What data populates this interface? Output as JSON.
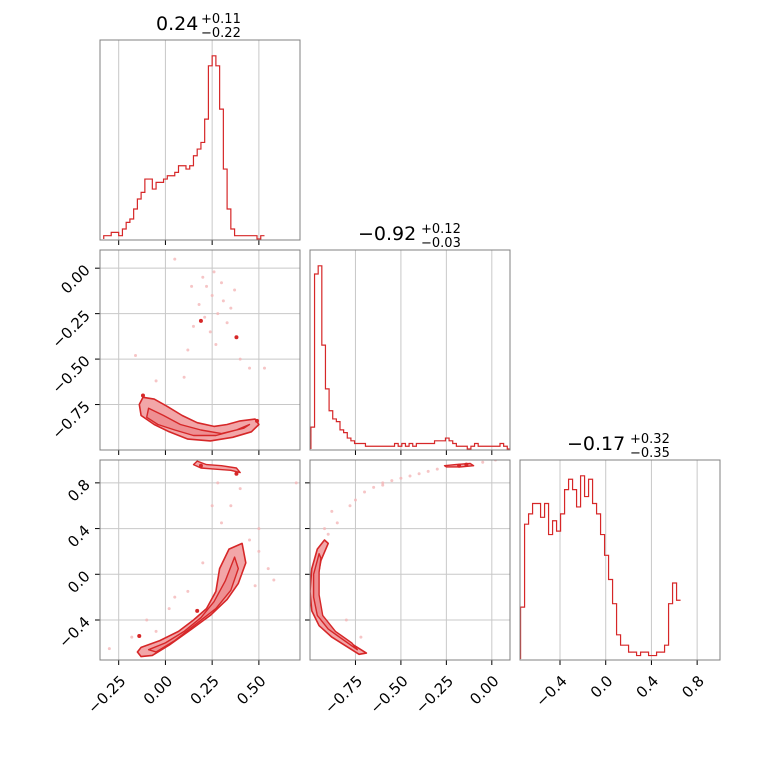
{
  "chart_data": {
    "type": "corner",
    "color": "#d62728",
    "fill_color": "#f2a6a8",
    "grid": true,
    "parameters": [
      {
        "range": [
          -0.35,
          0.72
        ],
        "ticks": [
          -0.25,
          0.0,
          0.25,
          0.5
        ],
        "tick_labels": [
          "−0.25",
          "0.00",
          "0.25",
          "0.50"
        ]
      },
      {
        "range": [
          -1.0,
          0.1
        ],
        "ticks": [
          -0.75,
          -0.5,
          -0.25,
          0.0
        ],
        "tick_labels": [
          "−0.75",
          "−0.50",
          "−0.25",
          "0.00"
        ]
      },
      {
        "range": [
          -0.75,
          1.0
        ],
        "ticks": [
          -0.4,
          0.0,
          0.4,
          0.8
        ],
        "tick_labels": [
          "−0.4",
          "0.0",
          "0.4",
          "0.8"
        ]
      }
    ],
    "titles": [
      {
        "main": "0.24",
        "plus": "+0.11",
        "minus": "−0.22"
      },
      {
        "main": "−0.92",
        "plus": "+0.12",
        "minus": "−0.03"
      },
      {
        "main": "−0.17",
        "plus": "+0.32",
        "minus": "−0.35"
      }
    ],
    "histograms": [
      {
        "parameter": 0,
        "edges_start": -0.33,
        "bin_width": 0.02,
        "counts": [
          1,
          1,
          2,
          2,
          1,
          3,
          5,
          6,
          9,
          12,
          14,
          18,
          18,
          15,
          17,
          17,
          18,
          19,
          19,
          20,
          22,
          22,
          21,
          22,
          25,
          27,
          29,
          36,
          52,
          55,
          52,
          39,
          21,
          9,
          3,
          1,
          1,
          1,
          1,
          1,
          1,
          0,
          1
        ]
      },
      {
        "parameter": 1,
        "edges_start": -0.995,
        "bin_width": 0.02,
        "counts": [
          8,
          64,
          67,
          38,
          22,
          14,
          11,
          10,
          7,
          6,
          4,
          3,
          2,
          2,
          2,
          1,
          1,
          1,
          1,
          1,
          1,
          1,
          1,
          2,
          1,
          2,
          1,
          2,
          1,
          2,
          2,
          2,
          2,
          2,
          3,
          3,
          3,
          4,
          3,
          2,
          1,
          1,
          1,
          0,
          1,
          2,
          1,
          1,
          1,
          1,
          1,
          1,
          2,
          1,
          0
        ]
      },
      {
        "parameter": 2,
        "edges_start": -0.745,
        "bin_width": 0.035,
        "counts": [
          15,
          39,
          42,
          45,
          45,
          41,
          45,
          36,
          40,
          37,
          42,
          49,
          52,
          49,
          44,
          53,
          47,
          52,
          45,
          42,
          36,
          30,
          23,
          16,
          7,
          4,
          4,
          2,
          2,
          1,
          2,
          2,
          1,
          1,
          2,
          2,
          4,
          16,
          22,
          17
        ]
      }
    ],
    "contours_2d": [
      {
        "x_param": 0,
        "y_param": 1,
        "outer": [
          [
            -0.12,
            -0.71
          ],
          [
            -0.06,
            -0.72
          ],
          [
            0.01,
            -0.76
          ],
          [
            0.09,
            -0.81
          ],
          [
            0.17,
            -0.85
          ],
          [
            0.26,
            -0.87
          ],
          [
            0.33,
            -0.86
          ],
          [
            0.4,
            -0.84
          ],
          [
            0.48,
            -0.83
          ],
          [
            0.5,
            -0.86
          ],
          [
            0.46,
            -0.9
          ],
          [
            0.36,
            -0.93
          ],
          [
            0.24,
            -0.95
          ],
          [
            0.12,
            -0.94
          ],
          [
            0.02,
            -0.9
          ],
          [
            -0.06,
            -0.86
          ],
          [
            -0.13,
            -0.81
          ],
          [
            -0.14,
            -0.75
          ]
        ],
        "inner": [
          [
            -0.09,
            -0.77
          ],
          [
            -0.01,
            -0.81
          ],
          [
            0.08,
            -0.86
          ],
          [
            0.19,
            -0.89
          ],
          [
            0.3,
            -0.91
          ],
          [
            0.42,
            -0.88
          ],
          [
            0.45,
            -0.86
          ],
          [
            0.38,
            -0.89
          ],
          [
            0.27,
            -0.92
          ],
          [
            0.15,
            -0.92
          ],
          [
            0.05,
            -0.89
          ],
          [
            -0.04,
            -0.86
          ],
          [
            -0.1,
            -0.82
          ]
        ],
        "islands": [
          [
            0.19,
            -0.29
          ],
          [
            0.38,
            -0.38
          ],
          [
            0.49,
            -0.84
          ],
          [
            -0.12,
            -0.7
          ]
        ],
        "scatter": [
          [
            0.2,
            -0.05
          ],
          [
            0.22,
            -0.1
          ],
          [
            0.25,
            -0.15
          ],
          [
            0.18,
            -0.2
          ],
          [
            0.28,
            -0.25
          ],
          [
            0.3,
            -0.08
          ],
          [
            0.33,
            -0.3
          ],
          [
            0.15,
            -0.32
          ],
          [
            0.24,
            -0.35
          ],
          [
            0.27,
            -0.42
          ],
          [
            0.35,
            -0.22
          ],
          [
            0.12,
            -0.45
          ],
          [
            0.4,
            -0.5
          ],
          [
            0.05,
            0.05
          ],
          [
            0.45,
            -0.55
          ],
          [
            -0.16,
            -0.48
          ],
          [
            0.53,
            -0.55
          ],
          [
            0.26,
            -0.02
          ],
          [
            0.31,
            -0.18
          ],
          [
            0.21,
            -0.27
          ],
          [
            -0.05,
            -0.62
          ],
          [
            0.1,
            -0.6
          ],
          [
            0.37,
            -0.12
          ],
          [
            0.14,
            -0.1
          ]
        ]
      },
      {
        "x_param": 0,
        "y_param": 2,
        "outer": [
          [
            -0.13,
            -0.64
          ],
          [
            -0.03,
            -0.58
          ],
          [
            0.07,
            -0.5
          ],
          [
            0.15,
            -0.4
          ],
          [
            0.22,
            -0.3
          ],
          [
            0.27,
            -0.15
          ],
          [
            0.29,
            0.05
          ],
          [
            0.34,
            0.22
          ],
          [
            0.41,
            0.27
          ],
          [
            0.43,
            0.1
          ],
          [
            0.39,
            -0.08
          ],
          [
            0.33,
            -0.22
          ],
          [
            0.24,
            -0.36
          ],
          [
            0.14,
            -0.48
          ],
          [
            0.02,
            -0.62
          ],
          [
            -0.07,
            -0.71
          ],
          [
            -0.13,
            -0.72
          ],
          [
            -0.15,
            -0.68
          ]
        ],
        "inner": [
          [
            -0.09,
            -0.66
          ],
          [
            0.0,
            -0.6
          ],
          [
            0.1,
            -0.5
          ],
          [
            0.19,
            -0.38
          ],
          [
            0.26,
            -0.24
          ],
          [
            0.32,
            -0.06
          ],
          [
            0.37,
            0.15
          ],
          [
            0.39,
            0.05
          ],
          [
            0.35,
            -0.14
          ],
          [
            0.27,
            -0.3
          ],
          [
            0.16,
            -0.44
          ],
          [
            0.05,
            -0.58
          ],
          [
            -0.05,
            -0.68
          ]
        ],
        "islands": [
          [
            -0.14,
            -0.54
          ],
          [
            0.17,
            -0.32
          ],
          [
            0.38,
            0.88
          ],
          [
            0.19,
            0.95
          ]
        ],
        "band": [
          [
            0.17,
            0.99
          ],
          [
            0.22,
            0.96
          ],
          [
            0.3,
            0.95
          ],
          [
            0.38,
            0.93
          ],
          [
            0.4,
            0.89
          ],
          [
            0.35,
            0.91
          ],
          [
            0.26,
            0.92
          ],
          [
            0.19,
            0.93
          ],
          [
            0.15,
            0.96
          ]
        ],
        "scatter": [
          [
            -0.18,
            -0.55
          ],
          [
            -0.1,
            -0.4
          ],
          [
            0.05,
            -0.2
          ],
          [
            0.2,
            0.1
          ],
          [
            0.45,
            0.3
          ],
          [
            0.5,
            0.2
          ],
          [
            0.55,
            0.05
          ],
          [
            0.3,
            0.45
          ],
          [
            0.25,
            0.6
          ],
          [
            0.48,
            -0.1
          ],
          [
            0.02,
            -0.3
          ],
          [
            -0.05,
            -0.5
          ],
          [
            0.35,
            0.6
          ],
          [
            0.4,
            0.75
          ],
          [
            0.12,
            -0.15
          ],
          [
            0.5,
            0.4
          ],
          [
            0.58,
            -0.05
          ],
          [
            0.7,
            0.8
          ],
          [
            -0.3,
            -0.65
          ],
          [
            0.28,
            0.8
          ]
        ]
      },
      {
        "x_param": 1,
        "y_param": 2,
        "outer": [
          [
            -0.92,
            0.3
          ],
          [
            -0.96,
            0.22
          ],
          [
            -0.99,
            0.05
          ],
          [
            -1.0,
            -0.15
          ],
          [
            -0.99,
            -0.32
          ],
          [
            -0.95,
            -0.45
          ],
          [
            -0.88,
            -0.55
          ],
          [
            -0.8,
            -0.63
          ],
          [
            -0.73,
            -0.7
          ],
          [
            -0.69,
            -0.69
          ],
          [
            -0.76,
            -0.62
          ],
          [
            -0.85,
            -0.52
          ],
          [
            -0.93,
            -0.4
          ],
          [
            -0.96,
            -0.25
          ],
          [
            -0.96,
            -0.05
          ],
          [
            -0.94,
            0.12
          ],
          [
            -0.9,
            0.27
          ]
        ],
        "inner": [
          [
            -0.95,
            0.18
          ],
          [
            -0.98,
            0.0
          ],
          [
            -0.98,
            -0.2
          ],
          [
            -0.96,
            -0.36
          ],
          [
            -0.9,
            -0.48
          ],
          [
            -0.82,
            -0.57
          ],
          [
            -0.74,
            -0.66
          ],
          [
            -0.77,
            -0.6
          ],
          [
            -0.86,
            -0.5
          ],
          [
            -0.93,
            -0.36
          ],
          [
            -0.95,
            -0.18
          ],
          [
            -0.95,
            0.02
          ],
          [
            -0.94,
            0.14
          ]
        ],
        "islands": [
          [
            -0.18,
            0.95
          ],
          [
            -0.14,
            0.96
          ]
        ],
        "band": [
          [
            -0.26,
            0.95
          ],
          [
            -0.2,
            0.96
          ],
          [
            -0.12,
            0.97
          ],
          [
            -0.1,
            0.95
          ],
          [
            -0.17,
            0.94
          ],
          [
            -0.25,
            0.94
          ]
        ],
        "scatter": [
          [
            -0.85,
            0.45
          ],
          [
            -0.78,
            0.6
          ],
          [
            -0.7,
            0.72
          ],
          [
            -0.6,
            0.8
          ],
          [
            -0.5,
            0.84
          ],
          [
            -0.4,
            0.88
          ],
          [
            -0.3,
            0.92
          ],
          [
            -0.05,
            0.98
          ],
          [
            0.02,
            1.0
          ],
          [
            -0.92,
            0.4
          ],
          [
            -0.88,
            0.55
          ],
          [
            -0.75,
            0.65
          ],
          [
            -0.65,
            0.76
          ],
          [
            -0.55,
            0.82
          ],
          [
            -0.45,
            0.86
          ],
          [
            -0.35,
            0.9
          ],
          [
            -0.8,
            -0.4
          ],
          [
            -0.72,
            -0.55
          ],
          [
            -0.9,
            0.35
          ],
          [
            -0.6,
            0.78
          ]
        ]
      }
    ]
  }
}
